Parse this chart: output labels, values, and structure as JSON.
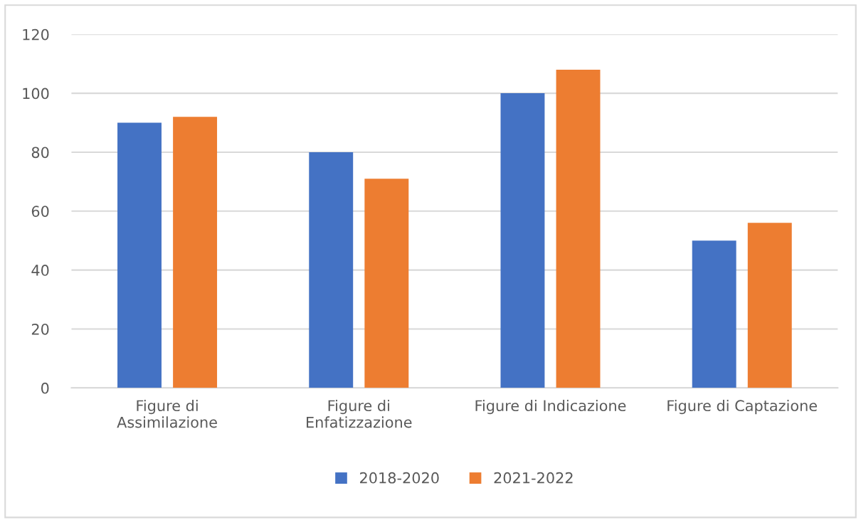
{
  "chart_data": {
    "type": "bar",
    "categories": [
      "Figure di\nAssimilazione",
      "Figure di\nEnfatizzazione",
      "Figure di Indicazione",
      "Figure di Captazione"
    ],
    "series": [
      {
        "name": "2018-2020",
        "color": "#4472c4",
        "values": [
          90,
          80,
          100,
          50
        ]
      },
      {
        "name": "2021-2022",
        "color": "#ed7d31",
        "values": [
          92,
          71,
          108,
          56
        ]
      }
    ],
    "ylim": [
      0,
      120
    ],
    "yticks": [
      0,
      20,
      40,
      60,
      80,
      100,
      120
    ],
    "grid": "y",
    "legend": "bottom"
  }
}
